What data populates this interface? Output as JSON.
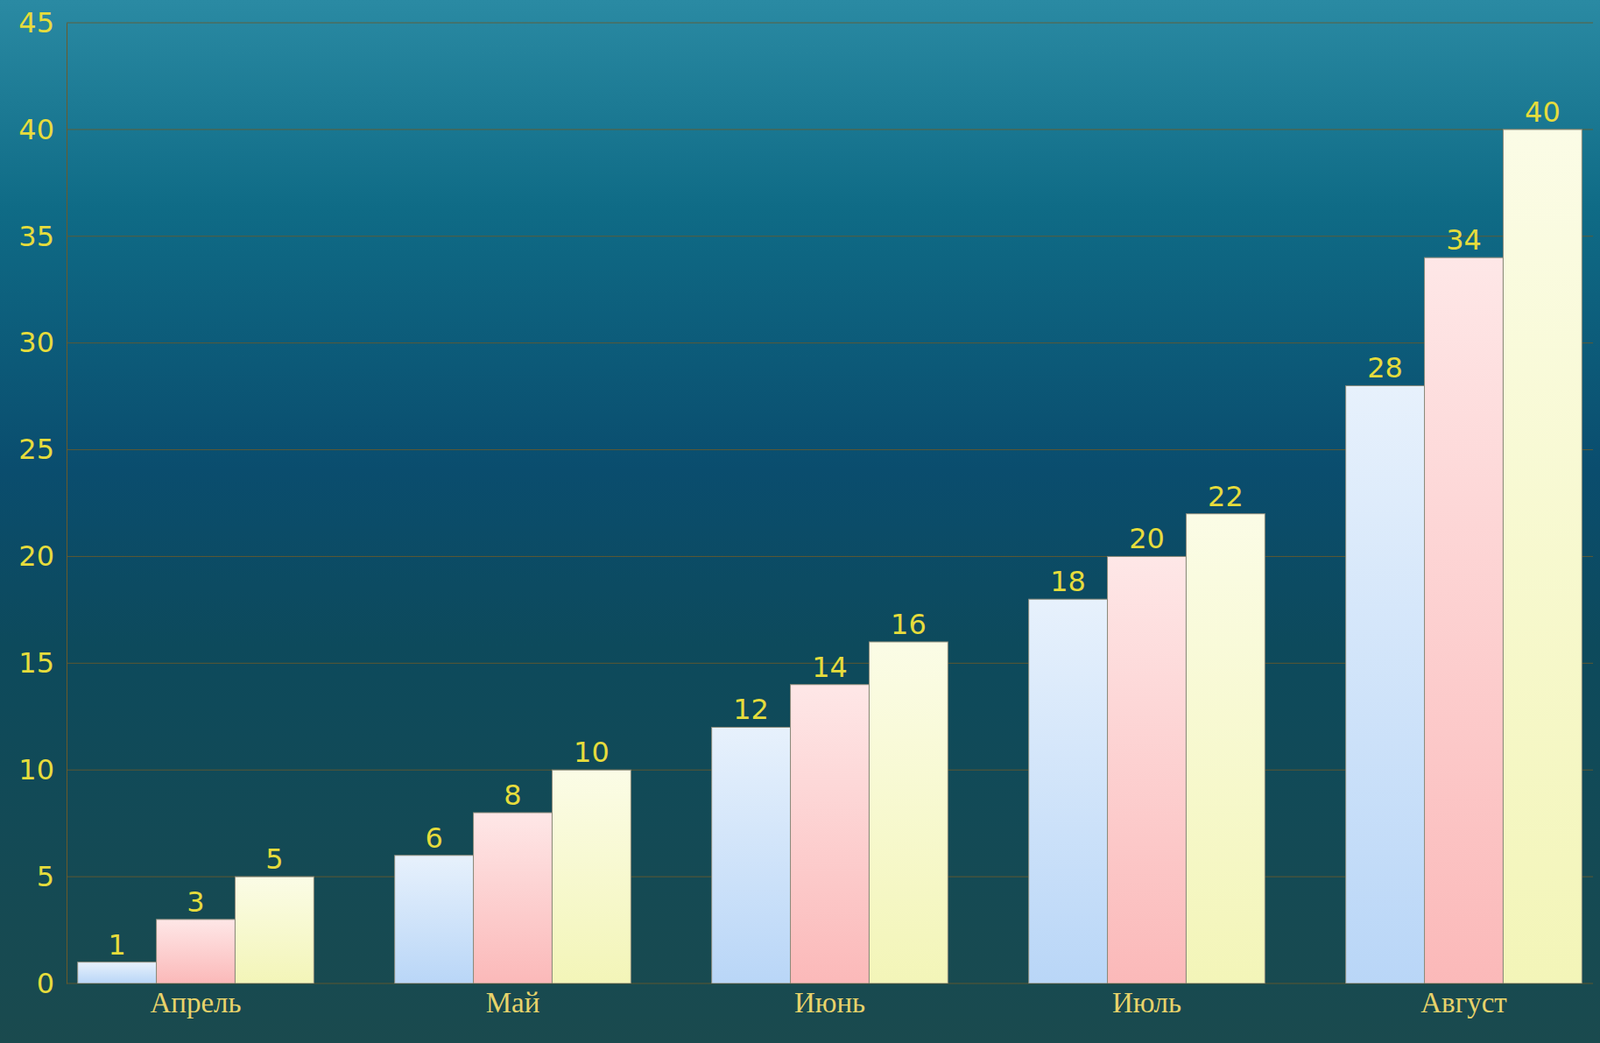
{
  "chart_data": {
    "type": "bar",
    "categories": [
      "Апрель",
      "Май",
      "Июнь",
      "Июль",
      "Август"
    ],
    "series": [
      {
        "color": "#b9d6f7",
        "values": [
          1,
          6,
          12,
          18,
          28
        ]
      },
      {
        "color": "#fbb9b9",
        "values": [
          3,
          8,
          14,
          20,
          34
        ]
      },
      {
        "color": "#f3f5b8",
        "values": [
          5,
          10,
          16,
          22,
          40
        ]
      }
    ],
    "ylim": [
      0,
      45
    ],
    "yticks": [
      0,
      5,
      10,
      15,
      20,
      25,
      30,
      35,
      40,
      45
    ],
    "grid": true,
    "data_labels": true
  }
}
